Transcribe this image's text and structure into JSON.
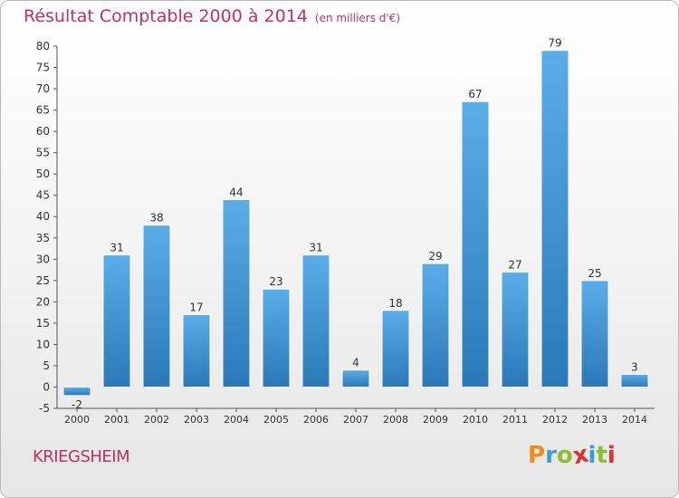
{
  "header": {
    "title": "Résultat Comptable 2000 à 2014",
    "subtitle": "(en milliers d'€)"
  },
  "footer": {
    "commune": "KRIEGSHEIM",
    "logo_text": "Proxiti"
  },
  "colors": {
    "title": "#c2315f",
    "bar_top": "#5aaee8",
    "bar_bottom": "#2a78b8",
    "logo": [
      "#f28a1b",
      "#3a9fd8",
      "#8dbf2d",
      "#e0302f",
      "#3a9fd8",
      "#8dbf2d",
      "#e0302f"
    ]
  },
  "chart_data": {
    "type": "bar",
    "categories": [
      "2000",
      "2001",
      "2002",
      "2003",
      "2004",
      "2005",
      "2006",
      "2007",
      "2008",
      "2009",
      "2010",
      "2011",
      "2012",
      "2013",
      "2014"
    ],
    "values": [
      -2,
      31,
      38,
      17,
      44,
      23,
      31,
      4,
      18,
      29,
      67,
      27,
      79,
      25,
      3
    ],
    "data_labels": [
      "-2",
      "31",
      "38",
      "17",
      "44",
      "23",
      "31",
      "4",
      "18",
      "29",
      "67",
      "27",
      "79",
      "25",
      "3"
    ],
    "y_ticks": [
      -5,
      0,
      5,
      10,
      15,
      20,
      25,
      30,
      35,
      40,
      45,
      50,
      55,
      60,
      65,
      70,
      75,
      80
    ],
    "ylim": [
      -5,
      80
    ],
    "grid": false
  }
}
